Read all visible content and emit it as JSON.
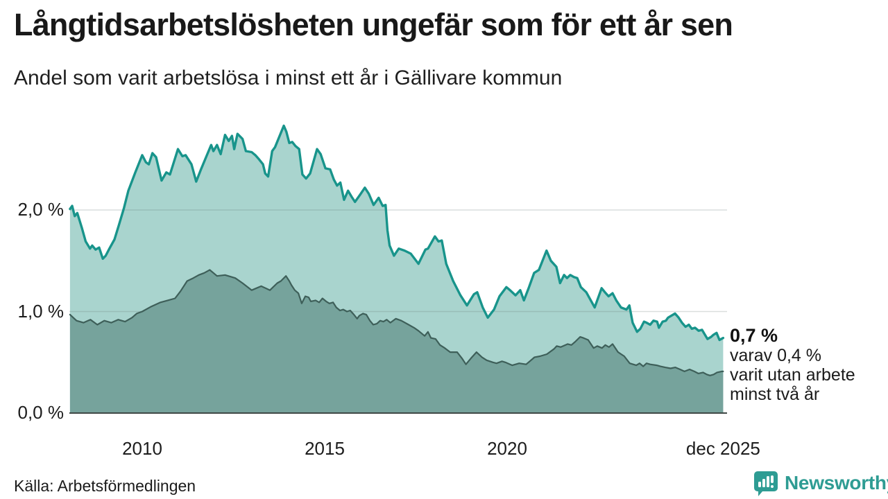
{
  "header": {
    "title": "Långtidsarbetslösheten ungefär som för ett år sen",
    "subtitle": "Andel som varit arbetslösa i minst ett år i Gällivare kommun"
  },
  "footer": {
    "source": "Källa: Arbetsförmedlingen",
    "brand": "Newsworthy"
  },
  "colors": {
    "line_1yr": "#18948b",
    "fill_1yr": "#a9d4ce",
    "line_2yr": "#3e5f59",
    "fill_2yr": "#76a39c",
    "gridline": "#6b7a78",
    "baseline": "#3f4845",
    "brand_teal": "#2e9c93"
  },
  "chart_data": {
    "type": "area",
    "title": "Långtidsarbetslösheten ungefär som för ett år sen",
    "subtitle": "Andel som varit arbetslösa i minst ett år i Gällivare kommun",
    "unit": "%",
    "x_axis": {
      "ticks": [
        {
          "year": 2010,
          "label": "2010"
        },
        {
          "year": 2015,
          "label": "2015"
        },
        {
          "year": 2020,
          "label": "2020"
        },
        {
          "year": 2025.92,
          "label": "dec 2025"
        }
      ],
      "domain": [
        2008.02,
        2025.92
      ]
    },
    "y_axis": {
      "ticks": [
        {
          "value": 0,
          "label": "0,0 %"
        },
        {
          "value": 1,
          "label": "1,0 %"
        },
        {
          "value": 2,
          "label": "2,0 %"
        }
      ],
      "ylim": [
        0,
        3
      ],
      "grid": true
    },
    "legend_position": "none",
    "annotation": {
      "value_label": "0,7 %",
      "lines": [
        "varav 0,4 %",
        "varit utan arbete",
        "minst två år"
      ]
    },
    "series": [
      {
        "name": "Arbetslösa minst ett år",
        "latest_value": 0.7,
        "points": [
          [
            2008.02,
            2.01
          ],
          [
            2008.08,
            2.04
          ],
          [
            2008.15,
            1.94
          ],
          [
            2008.22,
            1.97
          ],
          [
            2008.35,
            1.82
          ],
          [
            2008.45,
            1.69
          ],
          [
            2008.57,
            1.62
          ],
          [
            2008.63,
            1.65
          ],
          [
            2008.72,
            1.61
          ],
          [
            2008.82,
            1.63
          ],
          [
            2008.92,
            1.52
          ],
          [
            2009.0,
            1.55
          ],
          [
            2009.1,
            1.62
          ],
          [
            2009.24,
            1.71
          ],
          [
            2009.36,
            1.85
          ],
          [
            2009.5,
            2.02
          ],
          [
            2009.62,
            2.19
          ],
          [
            2009.81,
            2.37
          ],
          [
            2010.0,
            2.54
          ],
          [
            2010.1,
            2.47
          ],
          [
            2010.18,
            2.45
          ],
          [
            2010.28,
            2.56
          ],
          [
            2010.38,
            2.52
          ],
          [
            2010.53,
            2.29
          ],
          [
            2010.66,
            2.37
          ],
          [
            2010.76,
            2.35
          ],
          [
            2010.98,
            2.6
          ],
          [
            2011.1,
            2.53
          ],
          [
            2011.19,
            2.54
          ],
          [
            2011.35,
            2.45
          ],
          [
            2011.48,
            2.28
          ],
          [
            2011.61,
            2.4
          ],
          [
            2011.76,
            2.53
          ],
          [
            2011.89,
            2.64
          ],
          [
            2011.95,
            2.58
          ],
          [
            2012.05,
            2.64
          ],
          [
            2012.15,
            2.55
          ],
          [
            2012.27,
            2.74
          ],
          [
            2012.37,
            2.68
          ],
          [
            2012.46,
            2.73
          ],
          [
            2012.52,
            2.6
          ],
          [
            2012.61,
            2.75
          ],
          [
            2012.75,
            2.7
          ],
          [
            2012.84,
            2.58
          ],
          [
            2013.0,
            2.57
          ],
          [
            2013.1,
            2.54
          ],
          [
            2013.2,
            2.5
          ],
          [
            2013.31,
            2.45
          ],
          [
            2013.37,
            2.36
          ],
          [
            2013.45,
            2.33
          ],
          [
            2013.56,
            2.58
          ],
          [
            2013.64,
            2.62
          ],
          [
            2013.88,
            2.83
          ],
          [
            2013.95,
            2.77
          ],
          [
            2014.03,
            2.66
          ],
          [
            2014.11,
            2.67
          ],
          [
            2014.2,
            2.63
          ],
          [
            2014.3,
            2.6
          ],
          [
            2014.39,
            2.35
          ],
          [
            2014.49,
            2.31
          ],
          [
            2014.6,
            2.36
          ],
          [
            2014.79,
            2.6
          ],
          [
            2014.89,
            2.55
          ],
          [
            2015.02,
            2.41
          ],
          [
            2015.15,
            2.4
          ],
          [
            2015.25,
            2.3
          ],
          [
            2015.34,
            2.24
          ],
          [
            2015.43,
            2.27
          ],
          [
            2015.53,
            2.1
          ],
          [
            2015.64,
            2.19
          ],
          [
            2015.74,
            2.13
          ],
          [
            2015.83,
            2.08
          ],
          [
            2015.97,
            2.15
          ],
          [
            2016.1,
            2.22
          ],
          [
            2016.21,
            2.16
          ],
          [
            2016.34,
            2.05
          ],
          [
            2016.48,
            2.12
          ],
          [
            2016.59,
            2.04
          ],
          [
            2016.67,
            2.05
          ],
          [
            2016.72,
            1.8
          ],
          [
            2016.78,
            1.65
          ],
          [
            2016.9,
            1.55
          ],
          [
            2017.03,
            1.62
          ],
          [
            2017.19,
            1.6
          ],
          [
            2017.36,
            1.57
          ],
          [
            2017.57,
            1.47
          ],
          [
            2017.76,
            1.61
          ],
          [
            2017.83,
            1.62
          ],
          [
            2018.02,
            1.74
          ],
          [
            2018.12,
            1.69
          ],
          [
            2018.21,
            1.7
          ],
          [
            2018.33,
            1.47
          ],
          [
            2018.52,
            1.3
          ],
          [
            2018.72,
            1.16
          ],
          [
            2018.9,
            1.06
          ],
          [
            2019.09,
            1.17
          ],
          [
            2019.18,
            1.19
          ],
          [
            2019.33,
            1.04
          ],
          [
            2019.47,
            0.94
          ],
          [
            2019.64,
            1.02
          ],
          [
            2019.79,
            1.15
          ],
          [
            2019.98,
            1.24
          ],
          [
            2020.08,
            1.21
          ],
          [
            2020.23,
            1.16
          ],
          [
            2020.36,
            1.21
          ],
          [
            2020.46,
            1.11
          ],
          [
            2020.59,
            1.23
          ],
          [
            2020.74,
            1.38
          ],
          [
            2020.87,
            1.41
          ],
          [
            2020.97,
            1.5
          ],
          [
            2021.08,
            1.6
          ],
          [
            2021.2,
            1.5
          ],
          [
            2021.35,
            1.44
          ],
          [
            2021.45,
            1.28
          ],
          [
            2021.56,
            1.36
          ],
          [
            2021.64,
            1.33
          ],
          [
            2021.73,
            1.36
          ],
          [
            2021.83,
            1.34
          ],
          [
            2021.92,
            1.33
          ],
          [
            2022.02,
            1.24
          ],
          [
            2022.17,
            1.19
          ],
          [
            2022.4,
            1.04
          ],
          [
            2022.59,
            1.23
          ],
          [
            2022.68,
            1.19
          ],
          [
            2022.78,
            1.15
          ],
          [
            2022.89,
            1.18
          ],
          [
            2022.99,
            1.11
          ],
          [
            2023.12,
            1.04
          ],
          [
            2023.27,
            1.02
          ],
          [
            2023.35,
            1.06
          ],
          [
            2023.44,
            0.89
          ],
          [
            2023.56,
            0.8
          ],
          [
            2023.65,
            0.83
          ],
          [
            2023.75,
            0.9
          ],
          [
            2023.82,
            0.89
          ],
          [
            2023.92,
            0.87
          ],
          [
            2024.01,
            0.91
          ],
          [
            2024.11,
            0.9
          ],
          [
            2024.16,
            0.84
          ],
          [
            2024.26,
            0.9
          ],
          [
            2024.35,
            0.91
          ],
          [
            2024.41,
            0.94
          ],
          [
            2024.6,
            0.98
          ],
          [
            2024.7,
            0.94
          ],
          [
            2024.79,
            0.89
          ],
          [
            2024.89,
            0.85
          ],
          [
            2024.98,
            0.87
          ],
          [
            2025.06,
            0.83
          ],
          [
            2025.15,
            0.84
          ],
          [
            2025.25,
            0.81
          ],
          [
            2025.34,
            0.82
          ],
          [
            2025.49,
            0.73
          ],
          [
            2025.59,
            0.75
          ],
          [
            2025.65,
            0.77
          ],
          [
            2025.74,
            0.79
          ],
          [
            2025.82,
            0.72
          ],
          [
            2025.92,
            0.74
          ]
        ]
      },
      {
        "name": "Arbetslösa minst två år",
        "latest_value": 0.4,
        "points": [
          [
            2008.02,
            0.97
          ],
          [
            2008.2,
            0.91
          ],
          [
            2008.39,
            0.89
          ],
          [
            2008.58,
            0.92
          ],
          [
            2008.77,
            0.87
          ],
          [
            2008.96,
            0.91
          ],
          [
            2009.15,
            0.89
          ],
          [
            2009.34,
            0.92
          ],
          [
            2009.53,
            0.9
          ],
          [
            2009.72,
            0.94
          ],
          [
            2009.85,
            0.98
          ],
          [
            2010.0,
            1.0
          ],
          [
            2010.25,
            1.05
          ],
          [
            2010.5,
            1.09
          ],
          [
            2010.7,
            1.11
          ],
          [
            2010.9,
            1.13
          ],
          [
            2011.05,
            1.2
          ],
          [
            2011.23,
            1.3
          ],
          [
            2011.4,
            1.33
          ],
          [
            2011.55,
            1.36
          ],
          [
            2011.7,
            1.38
          ],
          [
            2011.85,
            1.41
          ],
          [
            2012.05,
            1.35
          ],
          [
            2012.27,
            1.36
          ],
          [
            2012.55,
            1.33
          ],
          [
            2012.75,
            1.28
          ],
          [
            2013.0,
            1.21
          ],
          [
            2013.26,
            1.25
          ],
          [
            2013.5,
            1.21
          ],
          [
            2013.7,
            1.28
          ],
          [
            2013.8,
            1.3
          ],
          [
            2013.94,
            1.35
          ],
          [
            2014.03,
            1.3
          ],
          [
            2014.09,
            1.26
          ],
          [
            2014.18,
            1.21
          ],
          [
            2014.28,
            1.18
          ],
          [
            2014.37,
            1.08
          ],
          [
            2014.47,
            1.15
          ],
          [
            2014.56,
            1.14
          ],
          [
            2014.62,
            1.1
          ],
          [
            2014.75,
            1.11
          ],
          [
            2014.85,
            1.09
          ],
          [
            2014.94,
            1.13
          ],
          [
            2015.04,
            1.1
          ],
          [
            2015.13,
            1.08
          ],
          [
            2015.23,
            1.09
          ],
          [
            2015.32,
            1.04
          ],
          [
            2015.42,
            1.01
          ],
          [
            2015.51,
            1.02
          ],
          [
            2015.61,
            1.0
          ],
          [
            2015.7,
            1.01
          ],
          [
            2015.8,
            0.97
          ],
          [
            2015.89,
            0.93
          ],
          [
            2015.95,
            0.96
          ],
          [
            2016.05,
            0.98
          ],
          [
            2016.14,
            0.97
          ],
          [
            2016.24,
            0.91
          ],
          [
            2016.33,
            0.87
          ],
          [
            2016.43,
            0.88
          ],
          [
            2016.52,
            0.91
          ],
          [
            2016.61,
            0.9
          ],
          [
            2016.7,
            0.92
          ],
          [
            2016.8,
            0.89
          ],
          [
            2016.95,
            0.93
          ],
          [
            2017.1,
            0.91
          ],
          [
            2017.3,
            0.87
          ],
          [
            2017.45,
            0.84
          ],
          [
            2017.57,
            0.81
          ],
          [
            2017.74,
            0.76
          ],
          [
            2017.83,
            0.8
          ],
          [
            2017.91,
            0.74
          ],
          [
            2018.04,
            0.73
          ],
          [
            2018.16,
            0.67
          ],
          [
            2018.29,
            0.64
          ],
          [
            2018.44,
            0.6
          ],
          [
            2018.63,
            0.6
          ],
          [
            2018.76,
            0.54
          ],
          [
            2018.87,
            0.48
          ],
          [
            2019.01,
            0.54
          ],
          [
            2019.16,
            0.6
          ],
          [
            2019.31,
            0.55
          ],
          [
            2019.44,
            0.52
          ],
          [
            2019.61,
            0.5
          ],
          [
            2019.71,
            0.49
          ],
          [
            2019.86,
            0.51
          ],
          [
            2019.95,
            0.5
          ],
          [
            2020.14,
            0.47
          ],
          [
            2020.33,
            0.49
          ],
          [
            2020.52,
            0.48
          ],
          [
            2020.75,
            0.55
          ],
          [
            2020.9,
            0.56
          ],
          [
            2021.09,
            0.58
          ],
          [
            2021.28,
            0.63
          ],
          [
            2021.36,
            0.66
          ],
          [
            2021.47,
            0.65
          ],
          [
            2021.66,
            0.68
          ],
          [
            2021.76,
            0.67
          ],
          [
            2021.86,
            0.7
          ],
          [
            2022.0,
            0.75
          ],
          [
            2022.09,
            0.74
          ],
          [
            2022.22,
            0.72
          ],
          [
            2022.37,
            0.64
          ],
          [
            2022.47,
            0.66
          ],
          [
            2022.6,
            0.64
          ],
          [
            2022.69,
            0.67
          ],
          [
            2022.79,
            0.65
          ],
          [
            2022.89,
            0.68
          ],
          [
            2023.04,
            0.6
          ],
          [
            2023.21,
            0.56
          ],
          [
            2023.36,
            0.49
          ],
          [
            2023.54,
            0.47
          ],
          [
            2023.63,
            0.49
          ],
          [
            2023.73,
            0.46
          ],
          [
            2023.82,
            0.49
          ],
          [
            2023.92,
            0.48
          ],
          [
            2024.1,
            0.47
          ],
          [
            2024.2,
            0.46
          ],
          [
            2024.33,
            0.45
          ],
          [
            2024.48,
            0.44
          ],
          [
            2024.61,
            0.45
          ],
          [
            2024.74,
            0.43
          ],
          [
            2024.86,
            0.41
          ],
          [
            2025.0,
            0.43
          ],
          [
            2025.13,
            0.41
          ],
          [
            2025.24,
            0.39
          ],
          [
            2025.37,
            0.4
          ],
          [
            2025.47,
            0.38
          ],
          [
            2025.56,
            0.37
          ],
          [
            2025.66,
            0.38
          ],
          [
            2025.75,
            0.4
          ],
          [
            2025.88,
            0.41
          ],
          [
            2025.92,
            0.41
          ]
        ]
      }
    ]
  }
}
